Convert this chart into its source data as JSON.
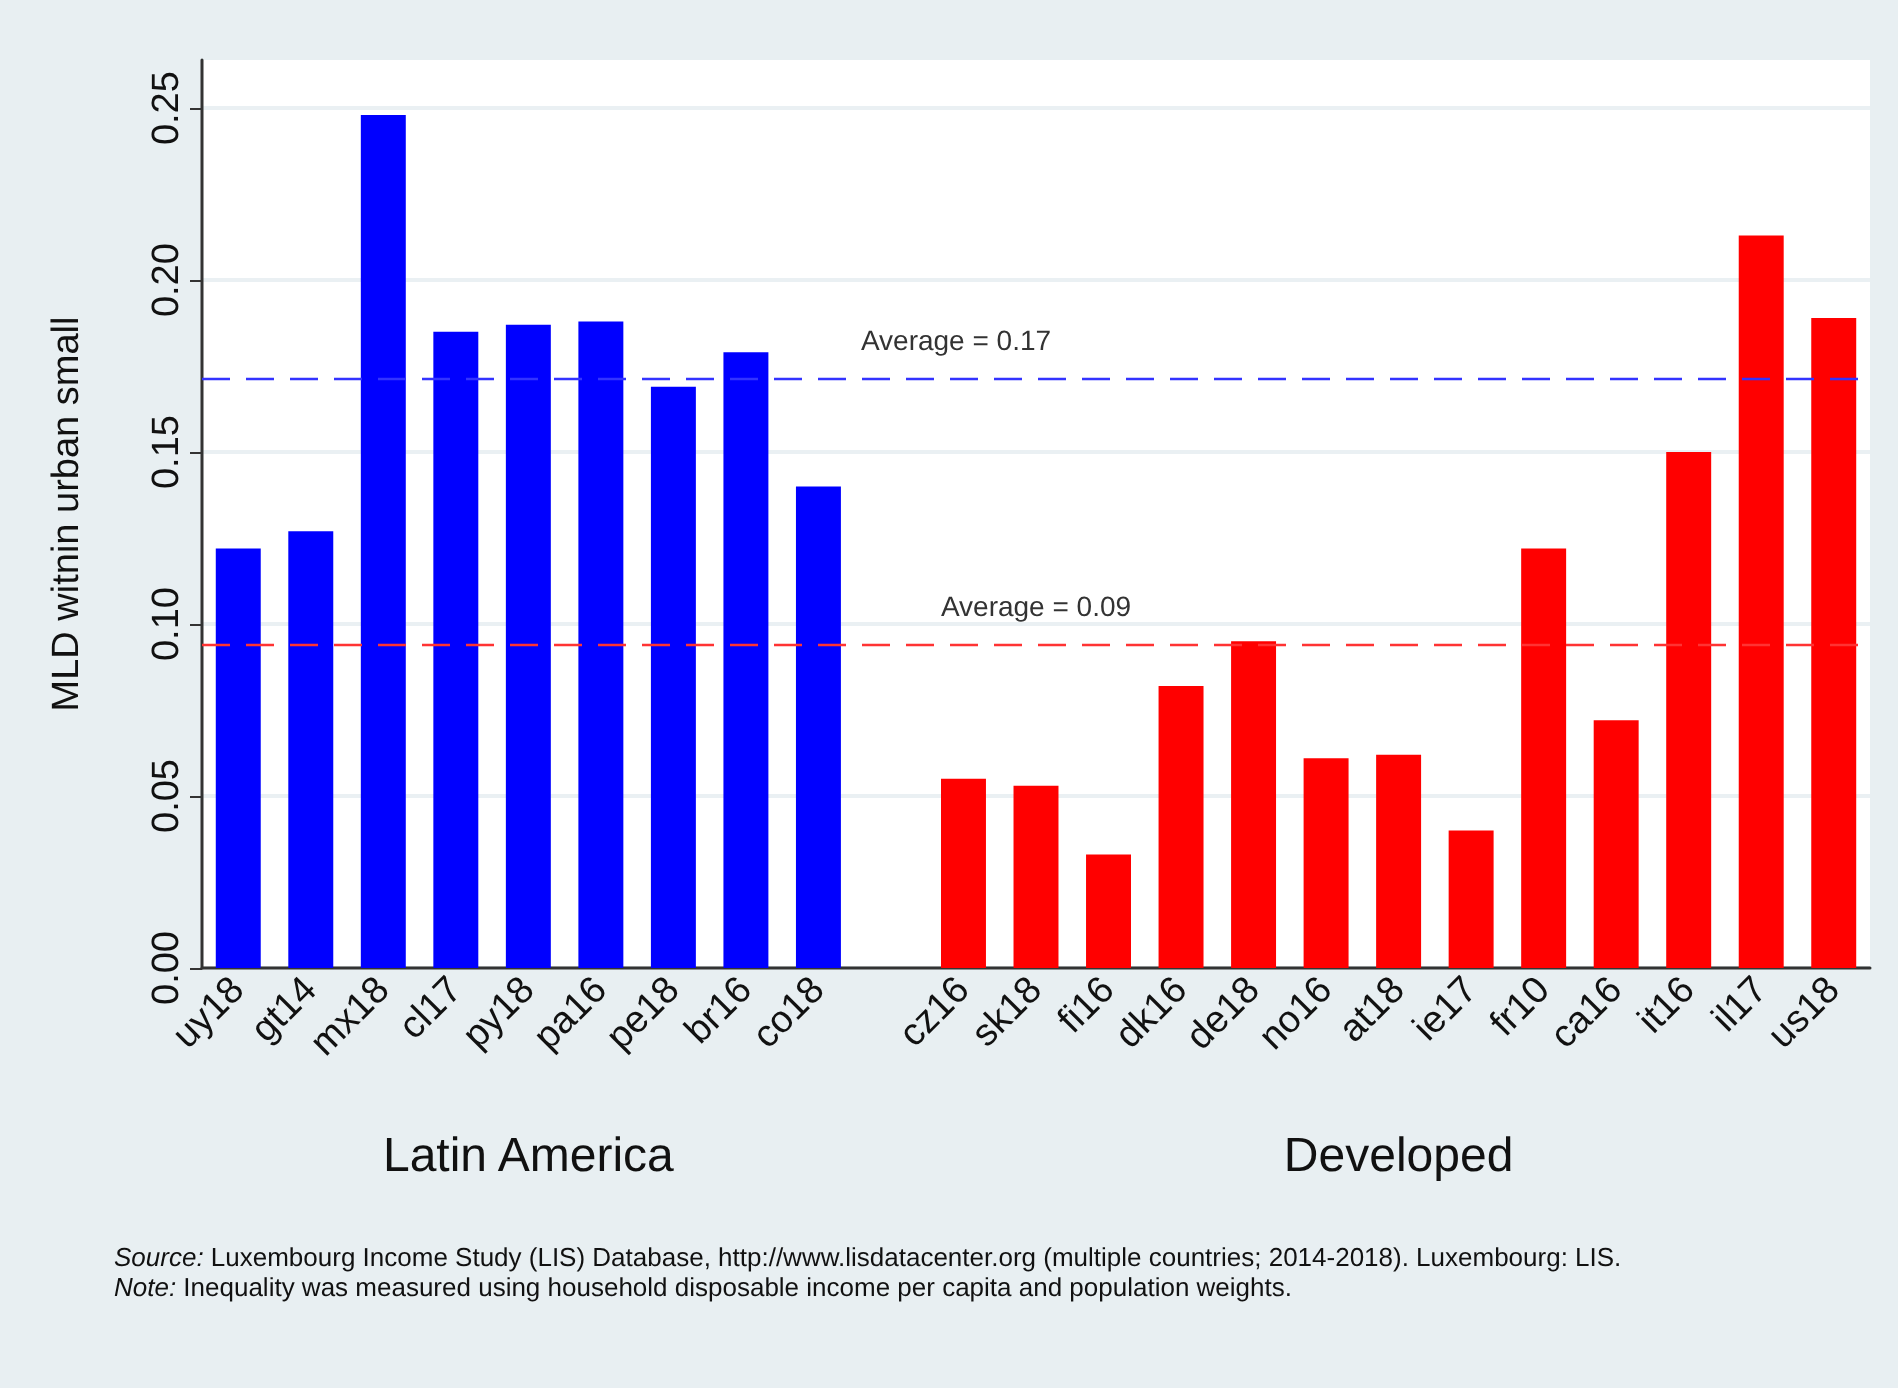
{
  "chart_data": {
    "type": "bar",
    "ylabel": "MLD witnin urban small",
    "categories": [
      "uy18",
      "gt14",
      "mx18",
      "cl17",
      "py18",
      "pa16",
      "pe18",
      "br16",
      "co18",
      null,
      "cz16",
      "sk18",
      "fi16",
      "dk16",
      "de18",
      "no16",
      "at18",
      "ie17",
      "fr10",
      "ca16",
      "it16",
      "il17",
      "us18"
    ],
    "values": [
      0.122,
      0.127,
      0.248,
      0.185,
      0.187,
      0.188,
      0.169,
      0.179,
      0.14,
      null,
      0.055,
      0.053,
      0.033,
      0.082,
      0.095,
      0.061,
      0.062,
      0.04,
      0.122,
      0.072,
      0.15,
      0.213,
      0.189
    ],
    "colors": [
      "#0000ff",
      "#0000ff",
      "#0000ff",
      "#0000ff",
      "#0000ff",
      "#0000ff",
      "#0000ff",
      "#0000ff",
      "#0000ff",
      null,
      "#ff0000",
      "#ff0000",
      "#ff0000",
      "#ff0000",
      "#ff0000",
      "#ff0000",
      "#ff0000",
      "#ff0000",
      "#ff0000",
      "#ff0000",
      "#ff0000",
      "#ff0000",
      "#ff0000"
    ],
    "ylim": [
      0,
      0.264
    ],
    "yticks": [
      {
        "value": 0,
        "label": "0.00"
      },
      {
        "value": 0.05,
        "label": "0.05"
      },
      {
        "value": 0.1,
        "label": "0.10"
      },
      {
        "value": 0.15,
        "label": "0.15"
      },
      {
        "value": 0.2,
        "label": "0.20"
      },
      {
        "value": 0.25,
        "label": "0.25"
      }
    ],
    "ref_lines": [
      {
        "axis": "y",
        "value": 0.1715,
        "label": "Average = 0.17",
        "color": "#3333ff",
        "line_style": "dashed"
      },
      {
        "axis": "y",
        "value": 0.0942,
        "label": "Average = 0.09",
        "color": "#ff3333",
        "line_style": "dashed"
      }
    ],
    "annotations": [
      "Latin America",
      "Developed",
      "Source: Luxembourg Income Study (LIS) Database, http://www.lisdatacenter.org (multiple countries; 2014-2018). Luxembourg: LIS.",
      "Note: Inequality was measured using household disposable income per capita and population weights."
    ],
    "grid": "y"
  }
}
